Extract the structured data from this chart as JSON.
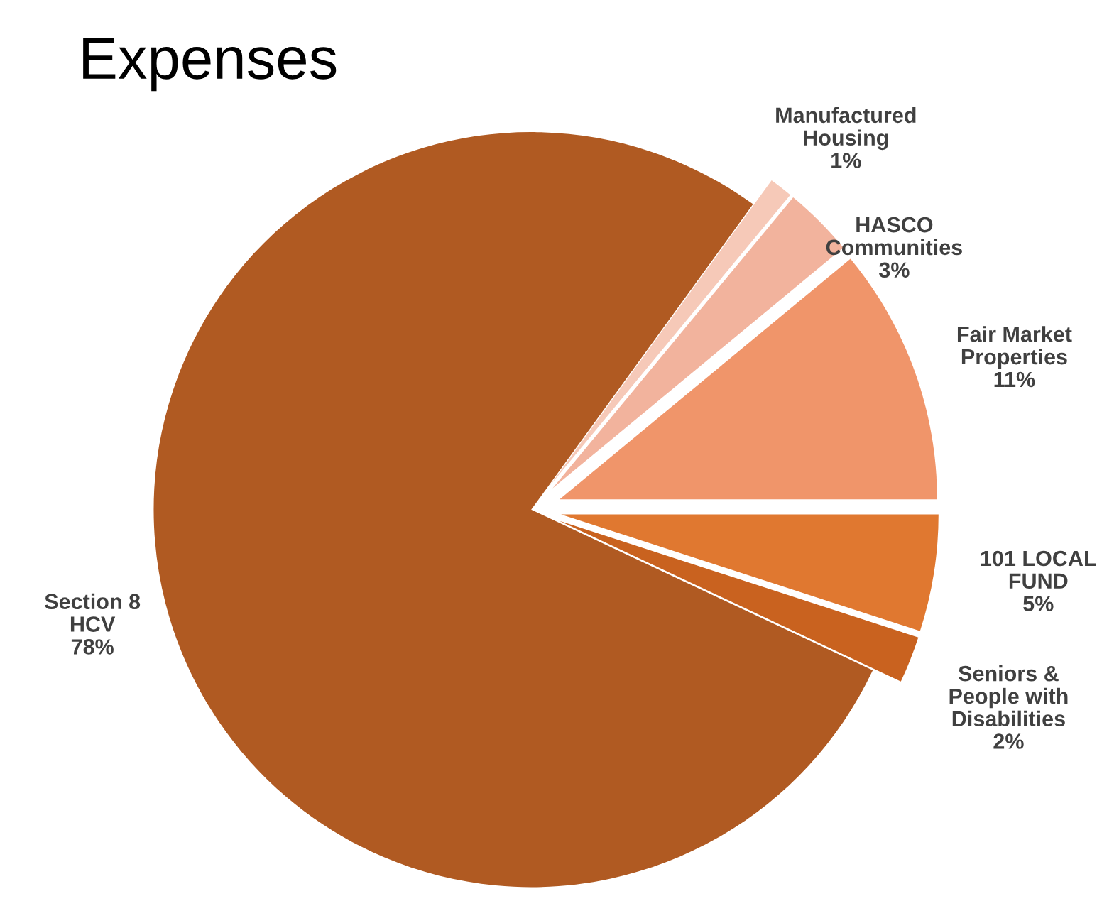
{
  "chart_data": {
    "type": "pie",
    "title": "Expenses",
    "categories": [
      "Manufactured Housing",
      "HASCO Communities",
      "Fair Market Properties",
      "101 LOCAL FUND",
      "Seniors & People with Disabilities",
      "Section 8 HCV"
    ],
    "values": [
      1,
      3,
      11,
      5,
      2,
      78
    ],
    "colors": [
      "#f6c9b8",
      "#f2b39d",
      "#f0956a",
      "#e07830",
      "#c9621f",
      "#b05a22"
    ],
    "value_labels": [
      "1%",
      "3%",
      "11%",
      "5%",
      "2%",
      "78%"
    ],
    "legend": false
  }
}
